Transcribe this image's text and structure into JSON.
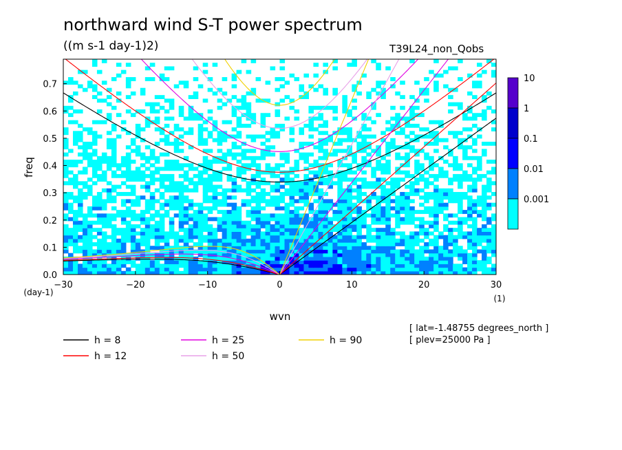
{
  "title": "northward wind S-T power spectrum",
  "units": "((m s-1 day-1)2)",
  "run_id": "T39L24_non_Qobs",
  "meta": [
    "[ lat=-1.48755 degrees_north ]",
    "[ plev=25000 Pa ]"
  ],
  "chart_data": {
    "type": "heatmap",
    "xlabel": "wvn",
    "ylabel": "freq",
    "x_unit": "(1)",
    "y_unit": "(day-1)",
    "xlim": [
      -30,
      30
    ],
    "ylim": [
      0.0,
      0.79
    ],
    "x_ticks": [
      -30,
      -20,
      -10,
      0,
      10,
      20,
      30
    ],
    "y_ticks": [
      0.0,
      0.1,
      0.2,
      0.3,
      0.4,
      0.5,
      0.6,
      0.7
    ],
    "colorbar": {
      "labels": [
        "10",
        "1",
        "0.1",
        "0.01",
        "0.001"
      ],
      "levels": [
        0.001,
        0.01,
        0.1,
        1,
        10
      ],
      "colors": [
        "#00ffff",
        "#0080ff",
        "#0000ff",
        "#0000cc",
        "#5500cc"
      ]
    },
    "dispersion_curves": [
      {
        "name": "h =  8",
        "h": 8,
        "color": "#000000"
      },
      {
        "name": "h = 12",
        "h": 12,
        "color": "#ff0000"
      },
      {
        "name": "h = 25",
        "h": 25,
        "color": "#e000e0"
      },
      {
        "name": "h = 50",
        "h": 50,
        "color": "#e8a0e8"
      },
      {
        "name": "h = 90",
        "h": 90,
        "color": "#f0d000"
      }
    ],
    "legend_placement": "bottom",
    "grid": false
  }
}
